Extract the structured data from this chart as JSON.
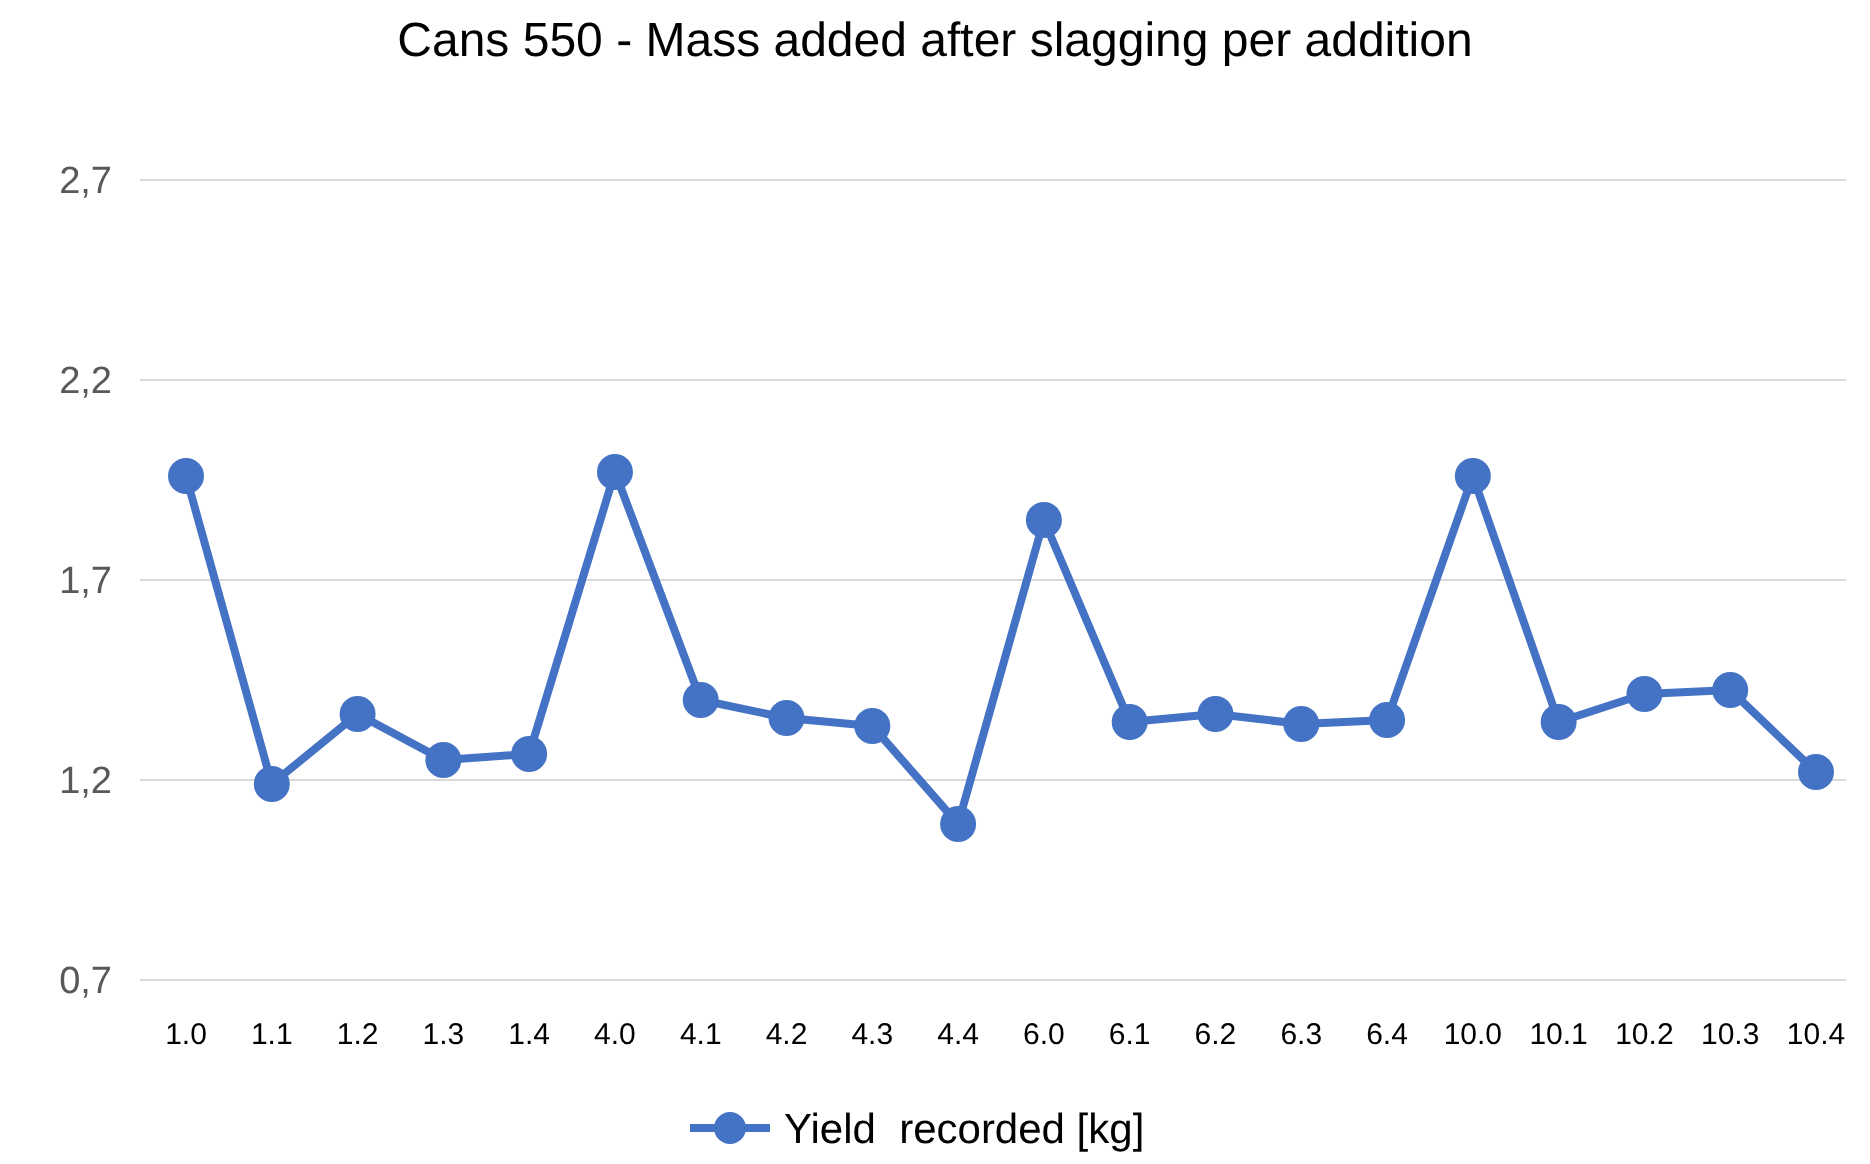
{
  "chart_data": {
    "type": "line",
    "title": "Cans 550 - Mass added after slagging per addition",
    "categories": [
      "1.0",
      "1.1",
      "1.2",
      "1.3",
      "1.4",
      "4.0",
      "4.1",
      "4.2",
      "4.3",
      "4.4",
      "6.0",
      "6.1",
      "6.2",
      "6.3",
      "6.4",
      "10.0",
      "10.1",
      "10.2",
      "10.3",
      "10.4"
    ],
    "series": [
      {
        "name": "Yield  recorded [kg]",
        "color": "#4472c4",
        "values": [
          1.96,
          1.19,
          1.365,
          1.25,
          1.265,
          1.97,
          1.4,
          1.355,
          1.335,
          1.09,
          1.85,
          1.345,
          1.365,
          1.34,
          1.35,
          1.96,
          1.345,
          1.415,
          1.425,
          1.22
        ]
      }
    ],
    "ylim": [
      0.7,
      2.7
    ],
    "yticks": [
      {
        "value": 0.7,
        "label": "0,7"
      },
      {
        "value": 1.2,
        "label": "1,2"
      },
      {
        "value": 1.7,
        "label": "1,7"
      },
      {
        "value": 2.2,
        "label": "2,2"
      },
      {
        "value": 2.7,
        "label": "2,7"
      }
    ],
    "grid": "y",
    "legend": "bottom",
    "marker": "circle",
    "line_style": "solid"
  }
}
